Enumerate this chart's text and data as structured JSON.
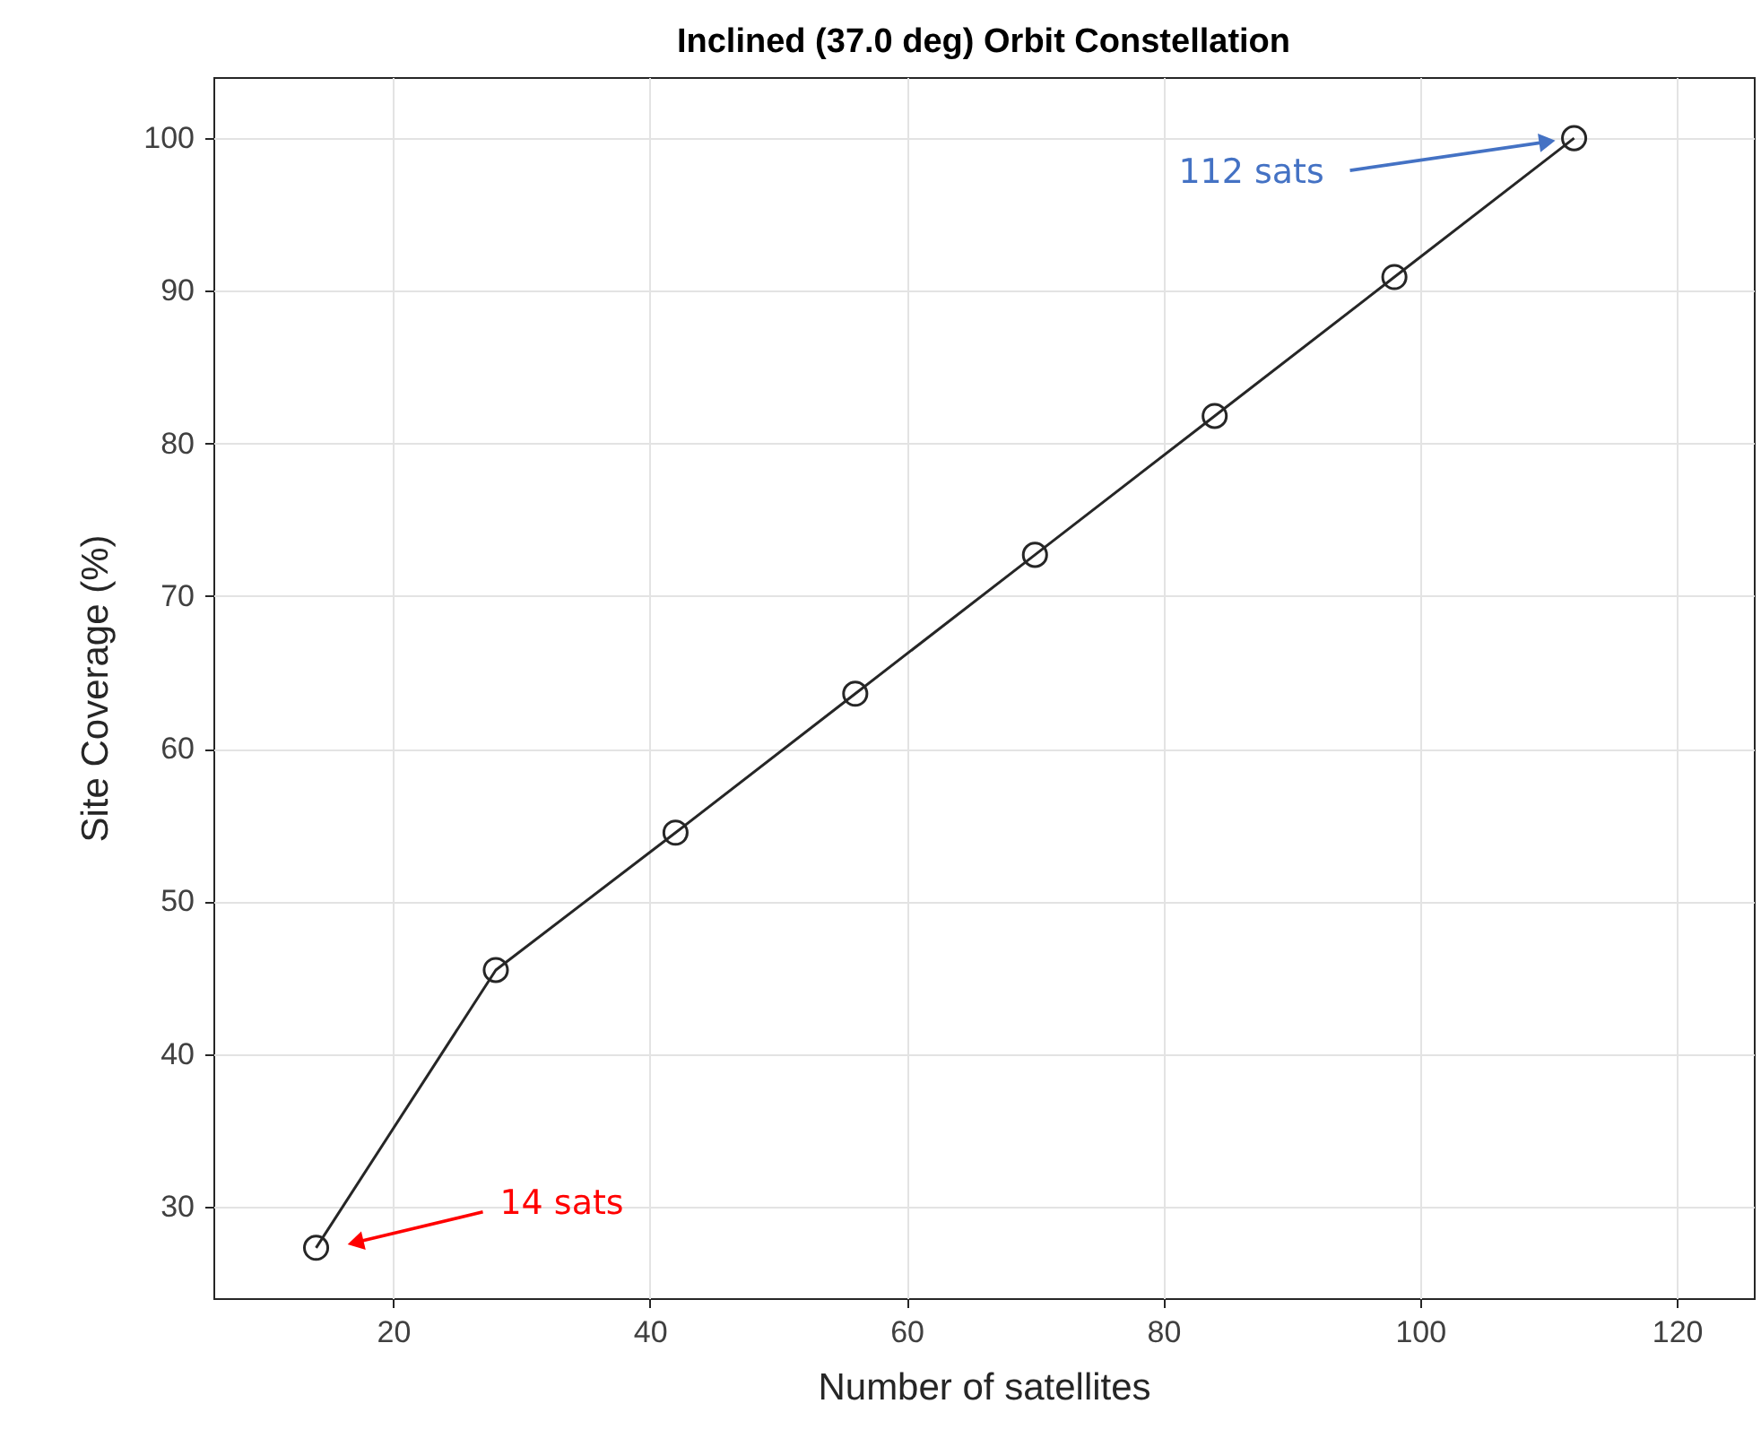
{
  "chart_data": {
    "type": "line",
    "title": "Inclined (37.0 deg) Orbit Constellation",
    "xlabel": "Number of satellites",
    "ylabel": "Site Coverage (%)",
    "x": [
      14,
      28,
      42,
      56,
      70,
      84,
      98,
      112
    ],
    "series": [
      {
        "color": "#262626",
        "values": [
          27.3,
          45.5,
          54.5,
          63.6,
          72.7,
          81.8,
          90.9,
          100
        ]
      }
    ],
    "xlim": [
      6,
      126
    ],
    "xticks": [
      20,
      40,
      60,
      80,
      100,
      120
    ],
    "ylim": [
      24,
      104
    ],
    "yticks": [
      30,
      40,
      50,
      60,
      70,
      80,
      90,
      100
    ],
    "grid": true,
    "marker": "circle",
    "line_style": "solid",
    "annotations": [
      "14 sats",
      "112 sats"
    ]
  }
}
